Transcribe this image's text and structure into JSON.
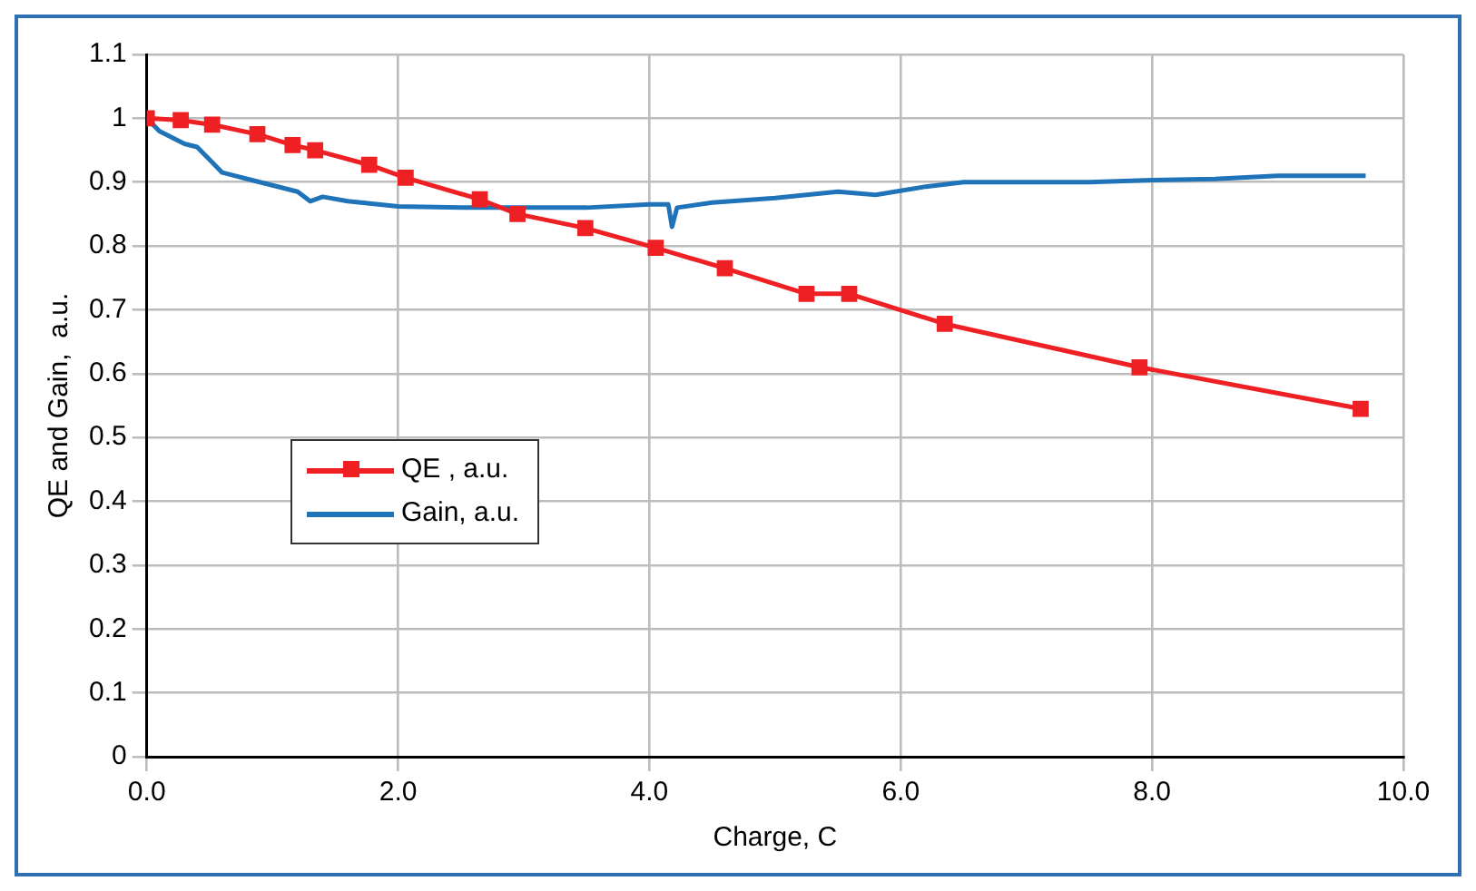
{
  "chart_data": {
    "type": "line",
    "xlabel": "Charge, C",
    "ylabel": "QE and Gain,  a.u.",
    "xlim": [
      0,
      10
    ],
    "xticks": [
      {
        "value": 0,
        "label": "0.0"
      },
      {
        "value": 2,
        "label": "2.0"
      },
      {
        "value": 4,
        "label": "4.0"
      },
      {
        "value": 6,
        "label": "6.0"
      },
      {
        "value": 8,
        "label": "8.0"
      },
      {
        "value": 10,
        "label": "10.0"
      }
    ],
    "ylim": [
      0,
      1.1
    ],
    "yticks": [
      0,
      0.1,
      0.2,
      0.3,
      0.4,
      0.5,
      0.6,
      0.7,
      0.8,
      0.9,
      1,
      1.1
    ],
    "grid": true,
    "legend": "left",
    "series": [
      {
        "name": "QE , a.u.",
        "color": "#ee2024",
        "marker": "square",
        "x": [
          0,
          0.27,
          0.52,
          0.88,
          1.16,
          1.34,
          1.77,
          2.06,
          2.65,
          2.95,
          3.49,
          4.05,
          4.6,
          5.25,
          5.59,
          6.35,
          7.9,
          9.66
        ],
        "values": [
          1.0,
          0.997,
          0.99,
          0.975,
          0.958,
          0.95,
          0.927,
          0.907,
          0.873,
          0.85,
          0.828,
          0.797,
          0.765,
          0.725,
          0.725,
          0.678,
          0.61,
          0.545
        ]
      },
      {
        "name": "Gain, a.u.",
        "color": "#1f73b8",
        "marker": "none",
        "x": [
          0,
          0.1,
          0.3,
          0.4,
          0.5,
          0.6,
          0.8,
          1.0,
          1.2,
          1.3,
          1.4,
          1.6,
          2.0,
          2.5,
          3.0,
          3.5,
          4.0,
          4.15,
          4.18,
          4.22,
          4.5,
          5.0,
          5.5,
          5.8,
          6.2,
          6.5,
          7.0,
          7.5,
          8.0,
          8.5,
          9.0,
          9.5,
          9.7
        ],
        "values": [
          1.0,
          0.98,
          0.96,
          0.955,
          0.935,
          0.915,
          0.905,
          0.895,
          0.885,
          0.87,
          0.877,
          0.87,
          0.862,
          0.86,
          0.86,
          0.86,
          0.865,
          0.865,
          0.83,
          0.86,
          0.868,
          0.875,
          0.885,
          0.88,
          0.893,
          0.9,
          0.9,
          0.9,
          0.903,
          0.905,
          0.91,
          0.91,
          0.91
        ]
      }
    ]
  }
}
